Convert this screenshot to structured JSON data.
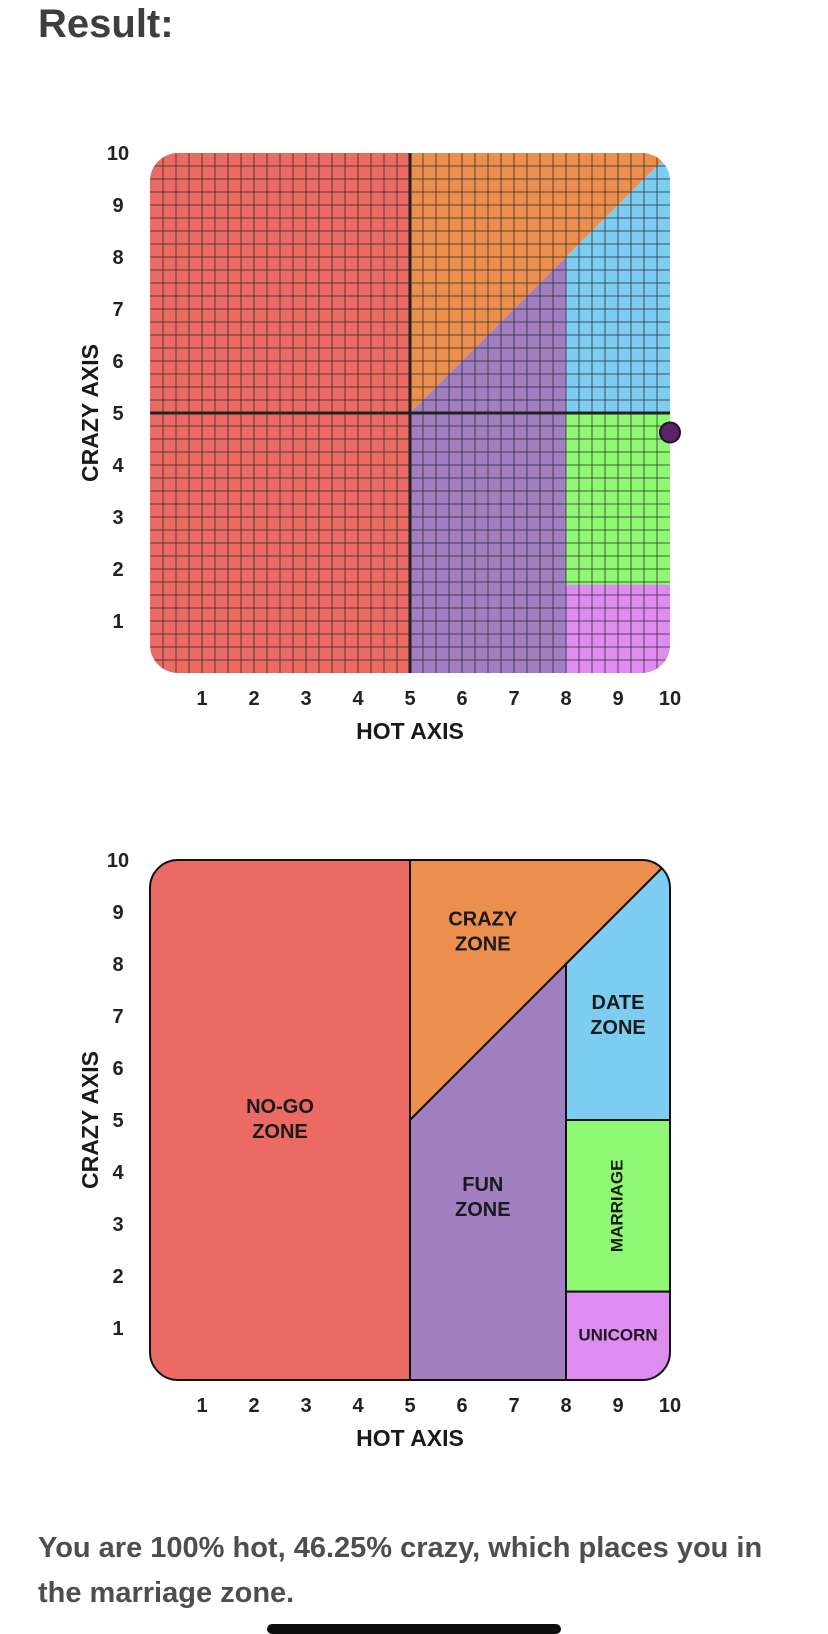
{
  "header": {
    "title": "Result:"
  },
  "result_text": "You are 100% hot, 46.25% crazy, which places you in the marriage zone.",
  "colors": {
    "nogo": "#EB6A64",
    "crazy": "#EC8F4E",
    "fun": "#A17FC0",
    "date": "#7DCCF2",
    "marriage": "#90F973",
    "unicorn": "#DF8CF1",
    "point": "#5A2466"
  },
  "chart_data": [
    {
      "type": "scatter",
      "xlabel": "HOT AXIS",
      "ylabel": "CRAZY AXIS",
      "xlim": [
        0,
        10
      ],
      "ylim": [
        0,
        10
      ],
      "x_ticks": [
        "1",
        "2",
        "3",
        "4",
        "5",
        "6",
        "7",
        "8",
        "9",
        "10"
      ],
      "y_ticks": [
        "1",
        "2",
        "3",
        "4",
        "5",
        "6",
        "7",
        "8",
        "9",
        "10"
      ],
      "grid": true,
      "series": [
        {
          "x": [
            10
          ],
          "y": [
            4.625
          ]
        }
      ]
    },
    {
      "type": "area",
      "xlabel": "HOT AXIS",
      "ylabel": "CRAZY AXIS",
      "xlim": [
        0,
        10
      ],
      "ylim": [
        0,
        10
      ],
      "x_ticks": [
        "1",
        "2",
        "3",
        "4",
        "5",
        "6",
        "7",
        "8",
        "9",
        "10"
      ],
      "y_ticks": [
        "1",
        "2",
        "3",
        "4",
        "5",
        "6",
        "7",
        "8",
        "9",
        "10"
      ],
      "grid": false,
      "zones": [
        {
          "key": "nogo",
          "label": "NO-GO\nZONE"
        },
        {
          "key": "crazy",
          "label": "CRAZY\nZONE"
        },
        {
          "key": "fun",
          "label": "FUN\nZONE"
        },
        {
          "key": "date",
          "label": "DATE\nZONE"
        },
        {
          "key": "marriage",
          "label": "MARRIAGE"
        },
        {
          "key": "unicorn",
          "label": "UNICORN"
        }
      ]
    }
  ]
}
